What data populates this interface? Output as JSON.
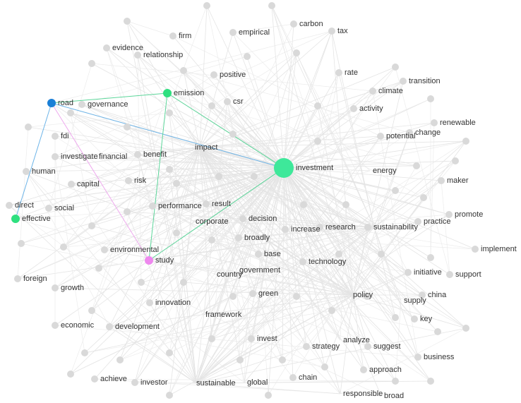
{
  "nodes": [
    {
      "label": "carbon"
    },
    {
      "label": "tax"
    },
    {
      "label": "firm"
    },
    {
      "label": "empirical"
    },
    {
      "label": "evidence"
    },
    {
      "label": "relationship"
    },
    {
      "label": "rate"
    },
    {
      "label": "transition"
    },
    {
      "label": "positive"
    },
    {
      "label": "climate"
    },
    {
      "label": "road"
    },
    {
      "label": "governance"
    },
    {
      "label": "emission"
    },
    {
      "label": "csr"
    },
    {
      "label": "activity"
    },
    {
      "label": "renewable"
    },
    {
      "label": "change"
    },
    {
      "label": "potential"
    },
    {
      "label": "fdi"
    },
    {
      "label": "investigate"
    },
    {
      "label": "financial"
    },
    {
      "label": "benefit"
    },
    {
      "label": "impact"
    },
    {
      "label": "investment"
    },
    {
      "label": "energy"
    },
    {
      "label": "human"
    },
    {
      "label": "maker"
    },
    {
      "label": "capital"
    },
    {
      "label": "risk"
    },
    {
      "label": "direct"
    },
    {
      "label": "social"
    },
    {
      "label": "performance"
    },
    {
      "label": "result"
    },
    {
      "label": "promote"
    },
    {
      "label": "practice"
    },
    {
      "label": "effective"
    },
    {
      "label": "corporate"
    },
    {
      "label": "decision"
    },
    {
      "label": "research"
    },
    {
      "label": "increase"
    },
    {
      "label": "sustainability"
    },
    {
      "label": "broadly"
    },
    {
      "label": "implement"
    },
    {
      "label": "environmental"
    },
    {
      "label": "base"
    },
    {
      "label": "technology"
    },
    {
      "label": "study"
    },
    {
      "label": "government"
    },
    {
      "label": "country"
    },
    {
      "label": "initiative"
    },
    {
      "label": "support"
    },
    {
      "label": "foreign"
    },
    {
      "label": "growth"
    },
    {
      "label": "green"
    },
    {
      "label": "policy"
    },
    {
      "label": "china"
    },
    {
      "label": "supply"
    },
    {
      "label": "innovation"
    },
    {
      "label": "framework"
    },
    {
      "label": "key"
    },
    {
      "label": "economic"
    },
    {
      "label": "development"
    },
    {
      "label": "invest"
    },
    {
      "label": "analyze"
    },
    {
      "label": "suggest"
    },
    {
      "label": "strategy"
    },
    {
      "label": "business"
    },
    {
      "label": "approach"
    },
    {
      "label": "achieve"
    },
    {
      "label": "investor"
    },
    {
      "label": "sustainable"
    },
    {
      "label": "global"
    },
    {
      "label": "chain"
    },
    {
      "label": "responsible"
    },
    {
      "label": "broad"
    }
  ]
}
